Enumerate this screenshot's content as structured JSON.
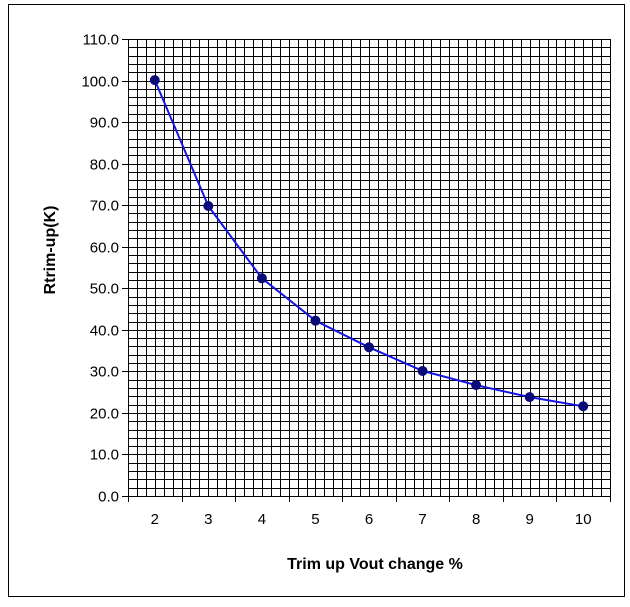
{
  "chart_data": {
    "type": "line",
    "title": "",
    "xlabel": "Trim up Vout change %",
    "ylabel": "Rtrim-up(K)",
    "categories": [
      "2",
      "3",
      "4",
      "5",
      "6",
      "7",
      "8",
      "9",
      "10"
    ],
    "y_tick_labels": [
      "0.0",
      "10.0",
      "20.0",
      "30.0",
      "40.0",
      "50.0",
      "60.0",
      "70.0",
      "80.0",
      "90.0",
      "100.0",
      "110.0"
    ],
    "ylim": [
      0,
      110
    ],
    "y_major_step": 10,
    "y_minor_step": 2,
    "grid": true,
    "legend": "none",
    "series": [
      {
        "values": [
          100.1,
          69.8,
          52.4,
          42.2,
          35.8,
          30.1,
          26.7,
          23.8,
          21.6
        ],
        "color": "#1414e6",
        "marker_color": "#0a0a78",
        "marker": "circle"
      }
    ]
  },
  "colors": {
    "background": "#ffffff",
    "frame": "#000000",
    "grid": "#000000"
  }
}
